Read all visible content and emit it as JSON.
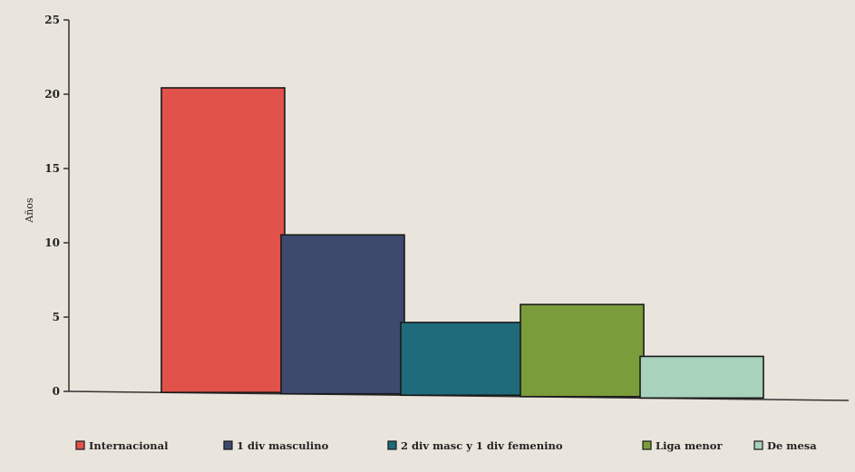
{
  "chart_data": {
    "type": "bar",
    "title": "",
    "xlabel": "",
    "ylabel": "Años",
    "ylim": [
      0,
      25
    ],
    "yticks": [
      0,
      5,
      10,
      15,
      20,
      25
    ],
    "grid": false,
    "legend_position": "bottom",
    "categories": [
      "Internacional",
      "1 div masculino",
      "2 div masc y 1 div femenino",
      "Liga menor",
      "De mesa"
    ],
    "values": [
      20.5,
      10.7,
      4.9,
      6.2,
      2.8
    ],
    "colors": [
      "#e0524a",
      "#3d4a6e",
      "#1f6b7c",
      "#7a9c3a",
      "#a9d2bd"
    ]
  }
}
